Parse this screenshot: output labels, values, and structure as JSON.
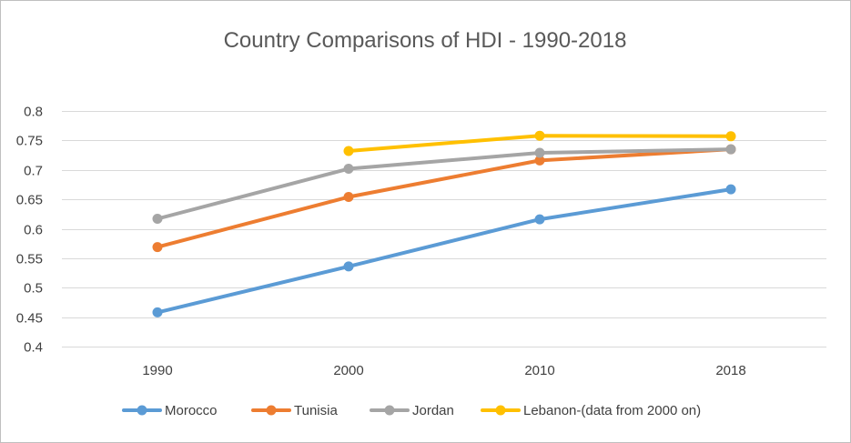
{
  "chart_data": {
    "type": "line",
    "title": "Country Comparisons of HDI - 1990-2018",
    "xlabel": "",
    "ylabel": "",
    "categories": [
      "1990",
      "2000",
      "2010",
      "2018"
    ],
    "ylim": [
      0.4,
      0.8
    ],
    "yticks": [
      0.4,
      0.45,
      0.5,
      0.55,
      0.6,
      0.65,
      0.7,
      0.75,
      0.8
    ],
    "ytick_labels": [
      "0.4",
      "0.45",
      "0.5",
      "0.55",
      "0.6",
      "0.65",
      "0.7",
      "0.75",
      "0.8"
    ],
    "grid": true,
    "legend_position": "bottom",
    "series": [
      {
        "name": "Morocco",
        "color": "#5b9bd5",
        "values": [
          0.458,
          0.536,
          0.616,
          0.667
        ]
      },
      {
        "name": "Tunisia",
        "color": "#ed7d31",
        "values": [
          0.569,
          0.654,
          0.716,
          0.735
        ]
      },
      {
        "name": "Jordan",
        "color": "#a5a5a5",
        "values": [
          0.617,
          0.702,
          0.729,
          0.735
        ]
      },
      {
        "name": "Lebanon-(data from 2000 on)",
        "color": "#ffc000",
        "values": [
          null,
          0.732,
          0.758,
          0.757
        ]
      }
    ]
  }
}
